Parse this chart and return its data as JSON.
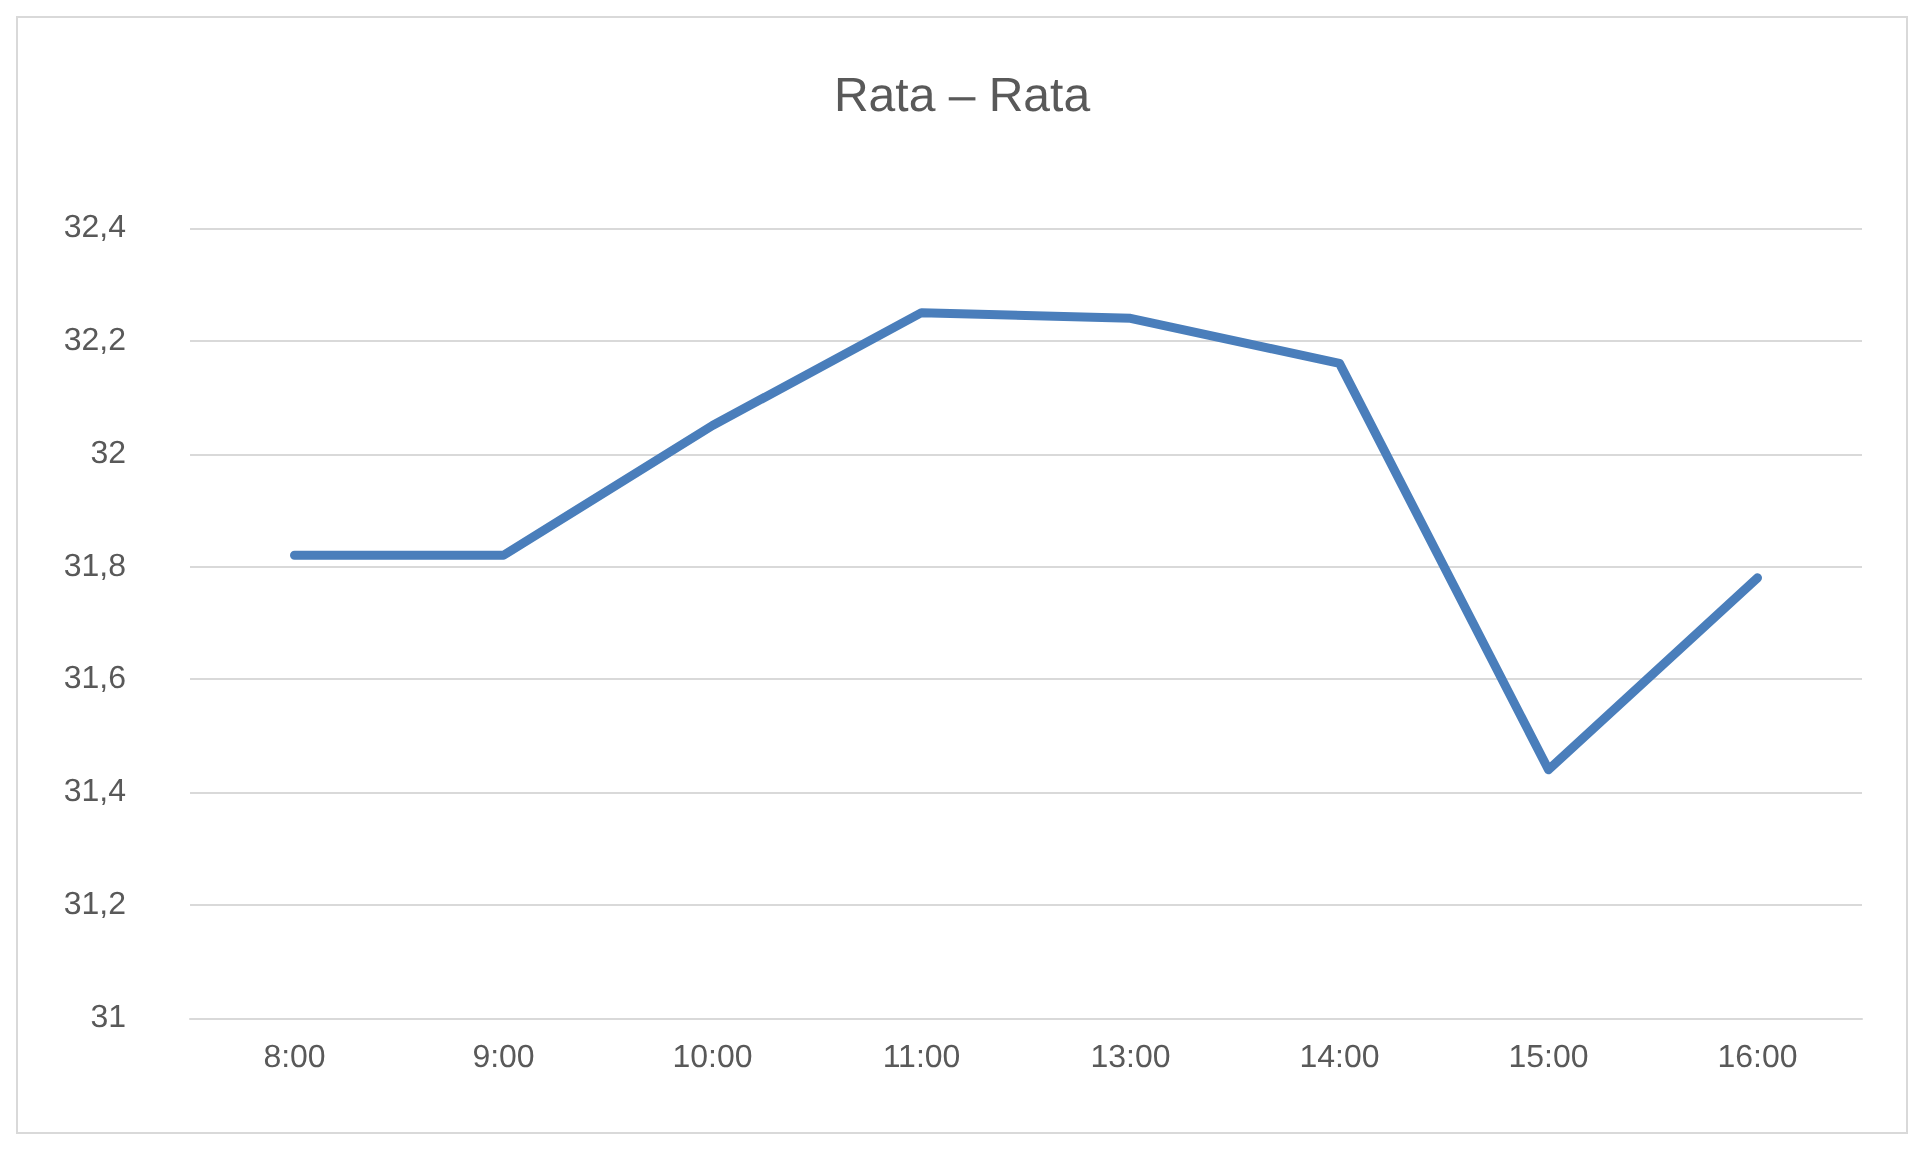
{
  "chart_data": {
    "type": "line",
    "title": "Rata – Rata",
    "categories": [
      "8:00",
      "9:00",
      "10:00",
      "11:00",
      "13:00",
      "14:00",
      "15:00",
      "16:00"
    ],
    "series": [
      {
        "color": "#4a7ebb",
        "values": [
          31.82,
          31.82,
          32.05,
          32.25,
          32.24,
          32.16,
          31.44,
          31.78
        ]
      }
    ],
    "ylim": [
      31,
      32.4
    ],
    "yticks": [
      {
        "value": 31,
        "label": "31"
      },
      {
        "value": 31.2,
        "label": "31,2"
      },
      {
        "value": 31.4,
        "label": "31,4"
      },
      {
        "value": 31.6,
        "label": "31,6"
      },
      {
        "value": 31.8,
        "label": "31,8"
      },
      {
        "value": 32,
        "label": "32"
      },
      {
        "value": 32.2,
        "label": "32,2"
      },
      {
        "value": 32.4,
        "label": "32,4"
      }
    ],
    "grid": "y",
    "marker": "none",
    "line_style": "solid"
  }
}
